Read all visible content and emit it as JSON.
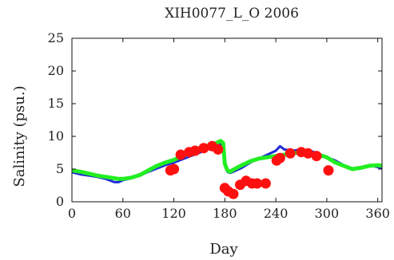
{
  "chart_data": {
    "type": "scatter",
    "title": "XIH0077_L_O 2006",
    "xlabel": "Day",
    "ylabel": "Salinity (psu.)",
    "xlim": [
      0,
      365
    ],
    "ylim": [
      0,
      25
    ],
    "xticks": [
      0,
      60,
      120,
      180,
      240,
      300,
      360
    ],
    "xtick_labels": [
      "0",
      "60",
      "120",
      "180",
      "240",
      "300",
      "360"
    ],
    "yticks": [
      0,
      5,
      10,
      15,
      20,
      25
    ],
    "ytick_labels": [
      "0",
      "5",
      "10",
      "15",
      "20",
      "25"
    ],
    "grid": false,
    "colors": {
      "blue": "#1f2bd6",
      "green": "#22ee22",
      "red": "#ff1010"
    },
    "series": [
      {
        "style": "line",
        "color": "#1f2bd6",
        "x": [
          0,
          10,
          20,
          30,
          40,
          50,
          55,
          60,
          70,
          80,
          90,
          100,
          110,
          120,
          130,
          140,
          150,
          160,
          170,
          175,
          178,
          180,
          183,
          186,
          190,
          200,
          210,
          220,
          230,
          240,
          245,
          250,
          260,
          270,
          280,
          290,
          300,
          310,
          320,
          330,
          340,
          350,
          360,
          365
        ],
        "y": [
          4.5,
          4.2,
          4.0,
          3.8,
          3.5,
          3.0,
          3.0,
          3.3,
          3.6,
          4.0,
          4.6,
          5.1,
          5.6,
          6.0,
          6.5,
          7.0,
          7.5,
          8.0,
          8.5,
          8.8,
          8.5,
          5.5,
          4.6,
          4.4,
          4.6,
          5.2,
          6.0,
          6.6,
          7.2,
          7.8,
          8.5,
          8.0,
          7.8,
          8.0,
          7.8,
          7.4,
          6.8,
          6.3,
          5.6,
          5.1,
          5.3,
          5.6,
          5.3,
          5.2
        ]
      },
      {
        "style": "line",
        "color": "#22ee22",
        "x": [
          0,
          10,
          20,
          30,
          40,
          50,
          55,
          60,
          70,
          80,
          90,
          100,
          110,
          120,
          130,
          140,
          150,
          160,
          170,
          175,
          178,
          180,
          183,
          186,
          190,
          200,
          210,
          220,
          230,
          240,
          250,
          260,
          270,
          280,
          290,
          300,
          310,
          320,
          330,
          340,
          350,
          360,
          365
        ],
        "y": [
          4.8,
          4.6,
          4.3,
          4.0,
          3.8,
          3.6,
          3.5,
          3.5,
          3.7,
          4.1,
          4.8,
          5.5,
          6.0,
          6.4,
          7.0,
          7.5,
          8.2,
          8.6,
          9.0,
          9.3,
          9.0,
          5.8,
          4.8,
          4.6,
          4.9,
          5.6,
          6.2,
          6.6,
          6.8,
          7.0,
          7.2,
          7.4,
          7.6,
          7.4,
          7.2,
          6.8,
          6.0,
          5.5,
          5.0,
          5.2,
          5.5,
          5.6,
          5.5
        ]
      },
      {
        "style": "markers",
        "color": "#ff1010",
        "x": [
          116,
          120,
          128,
          138,
          145,
          155,
          165,
          172,
          180,
          184,
          190,
          198,
          205,
          212,
          218,
          228,
          241,
          245,
          257,
          270,
          278,
          288,
          302
        ],
        "y": [
          4.8,
          5.0,
          7.2,
          7.6,
          7.8,
          8.2,
          8.5,
          8.0,
          2.1,
          1.6,
          1.2,
          2.6,
          3.2,
          2.8,
          2.8,
          2.8,
          6.3,
          6.7,
          7.4,
          7.6,
          7.4,
          7.0,
          4.8
        ]
      }
    ]
  }
}
